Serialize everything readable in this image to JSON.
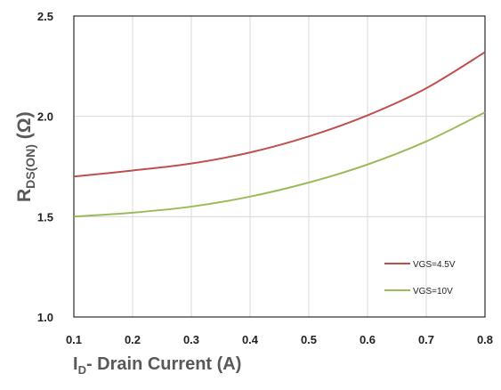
{
  "chart_data": {
    "type": "line",
    "x": [
      0.1,
      0.2,
      0.3,
      0.4,
      0.5,
      0.6,
      0.7,
      0.8
    ],
    "xlim": [
      0.1,
      0.8
    ],
    "ylim": [
      1.0,
      2.5
    ],
    "x_ticks": [
      "0.1",
      "0.2",
      "0.3",
      "0.4",
      "0.5",
      "0.6",
      "0.7",
      "0.8"
    ],
    "y_ticks": [
      "1.0",
      "1.5",
      "2.0",
      "2.5"
    ],
    "y_tick_values": [
      1.0,
      1.5,
      2.0,
      2.5
    ],
    "xlabel": {
      "main": "I",
      "sub": "D",
      "rest": "- Drain Current (A)"
    },
    "ylabel": {
      "main": "R",
      "sub": "DS(ON)",
      "rest": " (Ω)"
    },
    "grid": true,
    "legend_position": "bottom-right",
    "series": [
      {
        "name": "VGS=4.5V",
        "color": "#c0504d",
        "values": [
          1.7,
          1.73,
          1.765,
          1.82,
          1.9,
          2.005,
          2.14,
          2.32
        ]
      },
      {
        "name": "VGS=10V",
        "color": "#9bbb59",
        "values": [
          1.5,
          1.52,
          1.55,
          1.6,
          1.67,
          1.76,
          1.875,
          2.02
        ]
      }
    ]
  }
}
